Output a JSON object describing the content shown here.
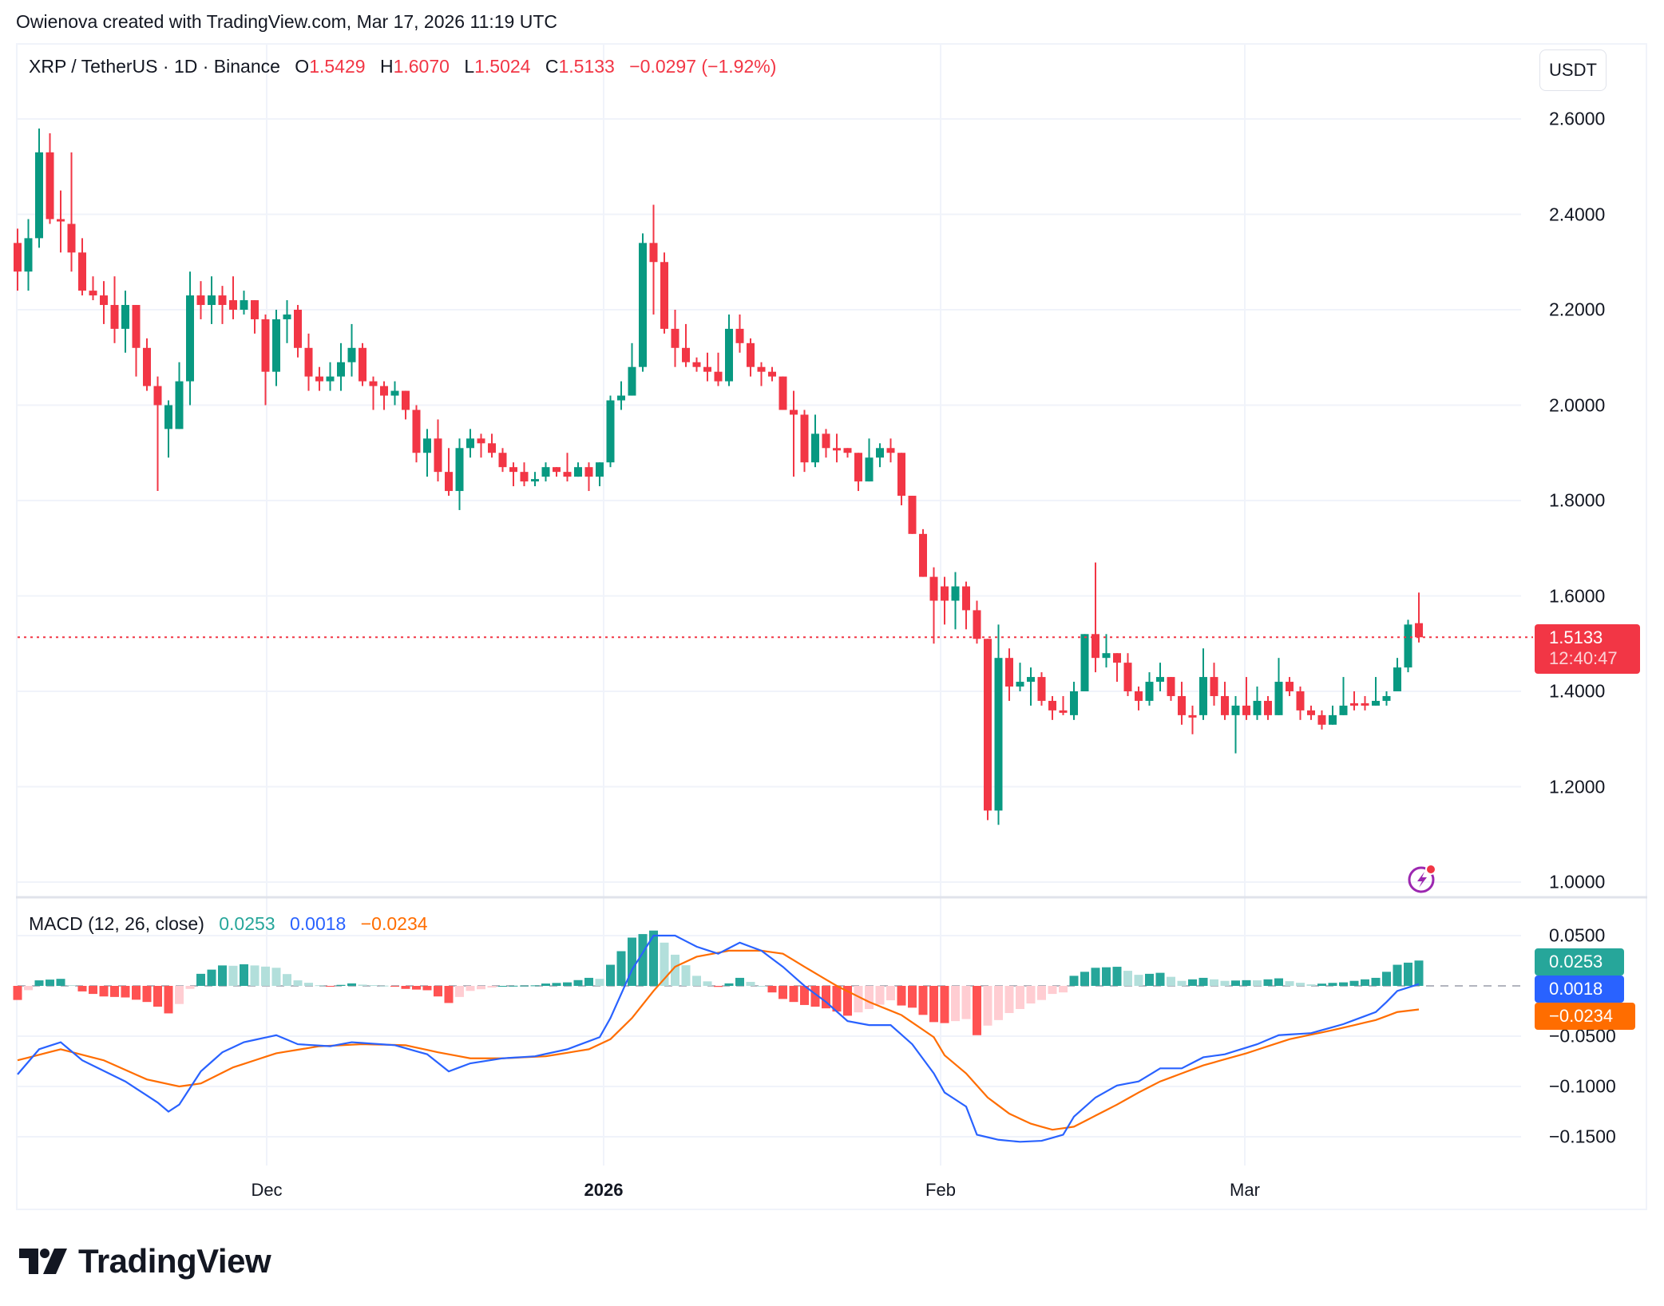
{
  "watermark": "Owienova created with TradingView.com, Mar 17, 2026 11:19 UTC",
  "legend": {
    "symbol": "XRP / TetherUS · 1D · Binance",
    "o_label": "O",
    "o_value": "1.5429",
    "h_label": "H",
    "h_value": "1.6070",
    "l_label": "L",
    "l_value": "1.5024",
    "c_label": "C",
    "c_value": "1.5133",
    "change": "−0.0297 (−1.92%)"
  },
  "price_axis": {
    "unit": "USDT",
    "ticks": [
      "2.6000",
      "2.4000",
      "2.2000",
      "2.0000",
      "1.8000",
      "1.6000",
      "1.4000",
      "1.2000",
      "1.0000"
    ],
    "last_price": "1.5133",
    "countdown": "12:40:47"
  },
  "macd": {
    "title": "MACD (12, 26, close)",
    "histogram_value": "0.0253",
    "macd_value": "0.0018",
    "signal_value": "−0.0234",
    "ticks": [
      "0.0500",
      "−0.0500",
      "−0.1000",
      "−0.1500"
    ]
  },
  "time_axis": {
    "labels": [
      "Dec",
      "2026",
      "Feb",
      "Mar"
    ]
  },
  "logo": {
    "text": "TradingView"
  },
  "colors": {
    "up": "#089981",
    "down": "#f23645",
    "hist_up_strong": "#26a69a",
    "hist_up_weak": "#b2dfdb",
    "hist_down_strong": "#ff5252",
    "hist_down_weak": "#ffcdd2",
    "macd_line": "#2962ff",
    "signal_line": "#ff6d00"
  },
  "chart_data": {
    "type": "candlestick",
    "title": "XRP / TetherUS · 1D · Binance",
    "xlabel": "",
    "ylabel": "USDT",
    "ylim": [
      1.0,
      2.6
    ],
    "x_ticks": [
      "Dec",
      "2026",
      "Feb",
      "Mar"
    ],
    "start_date": "approx. Nov 8, 2025",
    "end_date": "Mar 17, 2026",
    "ohlc": [
      [
        2.34,
        2.37,
        2.24,
        2.28
      ],
      [
        2.28,
        2.39,
        2.24,
        2.35
      ],
      [
        2.35,
        2.58,
        2.33,
        2.53
      ],
      [
        2.53,
        2.57,
        2.38,
        2.39
      ],
      [
        2.39,
        2.45,
        2.32,
        2.385
      ],
      [
        2.38,
        2.53,
        2.28,
        2.32
      ],
      [
        2.32,
        2.35,
        2.23,
        2.24
      ],
      [
        2.24,
        2.27,
        2.22,
        2.23
      ],
      [
        2.23,
        2.26,
        2.17,
        2.21
      ],
      [
        2.21,
        2.27,
        2.13,
        2.16
      ],
      [
        2.16,
        2.24,
        2.11,
        2.21
      ],
      [
        2.21,
        2.21,
        2.06,
        2.12
      ],
      [
        2.12,
        2.14,
        2.03,
        2.04
      ],
      [
        2.04,
        2.06,
        1.82,
        2.0
      ],
      [
        1.95,
        2.01,
        1.89,
        2.0
      ],
      [
        1.95,
        2.09,
        1.95,
        2.05
      ],
      [
        2.05,
        2.28,
        2.0,
        2.23
      ],
      [
        2.23,
        2.26,
        2.18,
        2.21
      ],
      [
        2.21,
        2.27,
        2.17,
        2.23
      ],
      [
        2.23,
        2.25,
        2.17,
        2.21
      ],
      [
        2.22,
        2.27,
        2.18,
        2.2
      ],
      [
        2.2,
        2.24,
        2.19,
        2.22
      ],
      [
        2.22,
        2.22,
        2.15,
        2.18
      ],
      [
        2.18,
        2.19,
        2.0,
        2.07
      ],
      [
        2.07,
        2.2,
        2.04,
        2.18
      ],
      [
        2.18,
        2.22,
        2.13,
        2.19
      ],
      [
        2.2,
        2.21,
        2.1,
        2.12
      ],
      [
        2.12,
        2.15,
        2.03,
        2.06
      ],
      [
        2.06,
        2.08,
        2.03,
        2.05
      ],
      [
        2.05,
        2.09,
        2.03,
        2.06
      ],
      [
        2.06,
        2.13,
        2.03,
        2.09
      ],
      [
        2.09,
        2.17,
        2.06,
        2.12
      ],
      [
        2.12,
        2.13,
        2.04,
        2.05
      ],
      [
        2.05,
        2.06,
        1.99,
        2.04
      ],
      [
        2.04,
        2.05,
        1.99,
        2.02
      ],
      [
        2.02,
        2.05,
        2.0,
        2.03
      ],
      [
        2.03,
        2.03,
        1.97,
        1.99
      ],
      [
        1.99,
        2.0,
        1.88,
        1.9
      ],
      [
        1.9,
        1.95,
        1.85,
        1.93
      ],
      [
        1.93,
        1.97,
        1.84,
        1.86
      ],
      [
        1.86,
        1.91,
        1.81,
        1.82
      ],
      [
        1.82,
        1.93,
        1.78,
        1.91
      ],
      [
        1.91,
        1.95,
        1.89,
        1.93
      ],
      [
        1.93,
        1.94,
        1.89,
        1.92
      ],
      [
        1.92,
        1.94,
        1.89,
        1.9
      ],
      [
        1.9,
        1.91,
        1.86,
        1.87
      ],
      [
        1.87,
        1.88,
        1.83,
        1.86
      ],
      [
        1.86,
        1.88,
        1.83,
        1.84
      ],
      [
        1.84,
        1.86,
        1.83,
        1.845
      ],
      [
        1.85,
        1.88,
        1.84,
        1.87
      ],
      [
        1.87,
        1.87,
        1.85,
        1.86
      ],
      [
        1.86,
        1.9,
        1.84,
        1.85
      ],
      [
        1.85,
        1.88,
        1.85,
        1.87
      ],
      [
        1.87,
        1.88,
        1.82,
        1.85
      ],
      [
        1.85,
        1.88,
        1.83,
        1.88
      ],
      [
        1.88,
        2.02,
        1.87,
        2.01
      ],
      [
        2.01,
        2.05,
        1.99,
        2.02
      ],
      [
        2.02,
        2.13,
        2.02,
        2.08
      ],
      [
        2.08,
        2.36,
        2.07,
        2.34
      ],
      [
        2.34,
        2.42,
        2.19,
        2.3
      ],
      [
        2.3,
        2.32,
        2.15,
        2.16
      ],
      [
        2.16,
        2.2,
        2.08,
        2.12
      ],
      [
        2.12,
        2.17,
        2.08,
        2.09
      ],
      [
        2.09,
        2.1,
        2.07,
        2.08
      ],
      [
        2.08,
        2.11,
        2.05,
        2.07
      ],
      [
        2.07,
        2.11,
        2.04,
        2.05
      ],
      [
        2.05,
        2.19,
        2.04,
        2.16
      ],
      [
        2.16,
        2.19,
        2.11,
        2.13
      ],
      [
        2.13,
        2.14,
        2.06,
        2.08
      ],
      [
        2.08,
        2.09,
        2.04,
        2.07
      ],
      [
        2.07,
        2.08,
        2.05,
        2.06
      ],
      [
        2.06,
        2.06,
        1.99,
        1.99
      ],
      [
        1.99,
        2.03,
        1.85,
        1.98
      ],
      [
        1.98,
        1.99,
        1.86,
        1.88
      ],
      [
        1.88,
        1.98,
        1.87,
        1.94
      ],
      [
        1.94,
        1.95,
        1.89,
        1.91
      ],
      [
        1.91,
        1.94,
        1.88,
        1.905
      ],
      [
        1.91,
        1.91,
        1.89,
        1.9
      ],
      [
        1.9,
        1.9,
        1.82,
        1.84
      ],
      [
        1.84,
        1.93,
        1.84,
        1.89
      ],
      [
        1.89,
        1.92,
        1.87,
        1.91
      ],
      [
        1.91,
        1.93,
        1.88,
        1.9
      ],
      [
        1.9,
        1.9,
        1.79,
        1.81
      ],
      [
        1.81,
        1.81,
        1.73,
        1.73
      ],
      [
        1.73,
        1.74,
        1.64,
        1.64
      ],
      [
        1.64,
        1.66,
        1.5,
        1.59
      ],
      [
        1.62,
        1.64,
        1.54,
        1.59
      ],
      [
        1.59,
        1.65,
        1.53,
        1.62
      ],
      [
        1.62,
        1.63,
        1.53,
        1.57
      ],
      [
        1.57,
        1.59,
        1.5,
        1.51
      ],
      [
        1.51,
        1.51,
        1.13,
        1.15
      ],
      [
        1.15,
        1.54,
        1.12,
        1.47
      ],
      [
        1.47,
        1.49,
        1.38,
        1.41
      ],
      [
        1.41,
        1.46,
        1.4,
        1.42
      ],
      [
        1.42,
        1.45,
        1.37,
        1.43
      ],
      [
        1.43,
        1.44,
        1.37,
        1.38
      ],
      [
        1.38,
        1.39,
        1.34,
        1.36
      ],
      [
        1.36,
        1.39,
        1.35,
        1.355
      ],
      [
        1.35,
        1.42,
        1.34,
        1.4
      ],
      [
        1.4,
        1.52,
        1.4,
        1.52
      ],
      [
        1.52,
        1.67,
        1.44,
        1.47
      ],
      [
        1.47,
        1.52,
        1.45,
        1.48
      ],
      [
        1.48,
        1.48,
        1.42,
        1.46
      ],
      [
        1.46,
        1.48,
        1.39,
        1.4
      ],
      [
        1.4,
        1.41,
        1.36,
        1.38
      ],
      [
        1.38,
        1.44,
        1.37,
        1.42
      ],
      [
        1.42,
        1.46,
        1.4,
        1.43
      ],
      [
        1.43,
        1.43,
        1.38,
        1.39
      ],
      [
        1.39,
        1.42,
        1.33,
        1.35
      ],
      [
        1.35,
        1.37,
        1.31,
        1.345
      ],
      [
        1.35,
        1.49,
        1.34,
        1.43
      ],
      [
        1.43,
        1.46,
        1.37,
        1.39
      ],
      [
        1.39,
        1.42,
        1.34,
        1.35
      ],
      [
        1.35,
        1.39,
        1.27,
        1.37
      ],
      [
        1.37,
        1.43,
        1.34,
        1.35
      ],
      [
        1.35,
        1.41,
        1.34,
        1.38
      ],
      [
        1.38,
        1.39,
        1.34,
        1.35
      ],
      [
        1.35,
        1.47,
        1.35,
        1.42
      ],
      [
        1.42,
        1.43,
        1.39,
        1.4
      ],
      [
        1.4,
        1.41,
        1.34,
        1.36
      ],
      [
        1.36,
        1.37,
        1.34,
        1.35
      ],
      [
        1.35,
        1.36,
        1.32,
        1.33
      ],
      [
        1.33,
        1.37,
        1.33,
        1.35
      ],
      [
        1.35,
        1.43,
        1.35,
        1.37
      ],
      [
        1.375,
        1.4,
        1.36,
        1.37
      ],
      [
        1.375,
        1.39,
        1.36,
        1.37
      ],
      [
        1.37,
        1.43,
        1.37,
        1.38
      ],
      [
        1.38,
        1.4,
        1.37,
        1.39
      ],
      [
        1.4,
        1.47,
        1.4,
        1.45
      ],
      [
        1.45,
        1.55,
        1.44,
        1.54
      ],
      [
        1.5429,
        1.607,
        1.5024,
        1.5133
      ]
    ],
    "macd_series": {
      "name": "MACD",
      "keyframes": [
        [
          0,
          -0.088
        ],
        [
          2,
          -0.063
        ],
        [
          4,
          -0.056
        ],
        [
          6,
          -0.074
        ],
        [
          10,
          -0.095
        ],
        [
          13,
          -0.116
        ],
        [
          14,
          -0.125
        ],
        [
          15,
          -0.118
        ],
        [
          17,
          -0.085
        ],
        [
          19,
          -0.066
        ],
        [
          21,
          -0.056
        ],
        [
          24,
          -0.049
        ],
        [
          26,
          -0.058
        ],
        [
          29,
          -0.06
        ],
        [
          31,
          -0.056
        ],
        [
          35,
          -0.059
        ],
        [
          38,
          -0.068
        ],
        [
          40,
          -0.085
        ],
        [
          42,
          -0.077
        ],
        [
          45,
          -0.072
        ],
        [
          48,
          -0.07
        ],
        [
          51,
          -0.063
        ],
        [
          54,
          -0.051
        ],
        [
          55,
          -0.032
        ],
        [
          57,
          0.016
        ],
        [
          59,
          0.05
        ],
        [
          61,
          0.05
        ],
        [
          63,
          0.039
        ],
        [
          65,
          0.032
        ],
        [
          67,
          0.043
        ],
        [
          69,
          0.035
        ],
        [
          71,
          0.019
        ],
        [
          73,
          0.0
        ],
        [
          75,
          -0.016
        ],
        [
          77,
          -0.035
        ],
        [
          79,
          -0.039
        ],
        [
          81,
          -0.039
        ],
        [
          83,
          -0.058
        ],
        [
          85,
          -0.087
        ],
        [
          86,
          -0.106
        ],
        [
          88,
          -0.12
        ],
        [
          89,
          -0.148
        ],
        [
          91,
          -0.153
        ],
        [
          93,
          -0.155
        ],
        [
          95,
          -0.154
        ],
        [
          97,
          -0.148
        ],
        [
          98,
          -0.13
        ],
        [
          100,
          -0.111
        ],
        [
          102,
          -0.099
        ],
        [
          104,
          -0.095
        ],
        [
          106,
          -0.082
        ],
        [
          108,
          -0.082
        ],
        [
          110,
          -0.071
        ],
        [
          112,
          -0.068
        ],
        [
          115,
          -0.058
        ],
        [
          117,
          -0.049
        ],
        [
          120,
          -0.047
        ],
        [
          123,
          -0.038
        ],
        [
          126,
          -0.026
        ],
        [
          127,
          -0.016
        ],
        [
          128,
          -0.005
        ],
        [
          130,
          0.0018
        ]
      ]
    },
    "signal_series": {
      "name": "Signal",
      "keyframes": [
        [
          0,
          -0.074
        ],
        [
          4,
          -0.063
        ],
        [
          8,
          -0.074
        ],
        [
          12,
          -0.093
        ],
        [
          15,
          -0.1
        ],
        [
          17,
          -0.097
        ],
        [
          20,
          -0.081
        ],
        [
          24,
          -0.067
        ],
        [
          28,
          -0.06
        ],
        [
          32,
          -0.058
        ],
        [
          36,
          -0.059
        ],
        [
          39,
          -0.066
        ],
        [
          42,
          -0.072
        ],
        [
          45,
          -0.072
        ],
        [
          49,
          -0.07
        ],
        [
          53,
          -0.063
        ],
        [
          55,
          -0.053
        ],
        [
          57,
          -0.032
        ],
        [
          59,
          -0.005
        ],
        [
          61,
          0.019
        ],
        [
          63,
          0.029
        ],
        [
          66,
          0.035
        ],
        [
          69,
          0.035
        ],
        [
          71,
          0.032
        ],
        [
          73,
          0.019
        ],
        [
          76,
          0.0
        ],
        [
          79,
          -0.016
        ],
        [
          82,
          -0.029
        ],
        [
          85,
          -0.051
        ],
        [
          86,
          -0.069
        ],
        [
          88,
          -0.087
        ],
        [
          90,
          -0.111
        ],
        [
          92,
          -0.127
        ],
        [
          94,
          -0.137
        ],
        [
          96,
          -0.143
        ],
        [
          98,
          -0.14
        ],
        [
          100,
          -0.129
        ],
        [
          102,
          -0.118
        ],
        [
          104,
          -0.106
        ],
        [
          106,
          -0.095
        ],
        [
          110,
          -0.079
        ],
        [
          114,
          -0.067
        ],
        [
          118,
          -0.053
        ],
        [
          122,
          -0.044
        ],
        [
          126,
          -0.034
        ],
        [
          128,
          -0.026
        ],
        [
          130,
          -0.0234
        ]
      ]
    },
    "macd_ylim": [
      -0.17,
      0.06
    ]
  }
}
